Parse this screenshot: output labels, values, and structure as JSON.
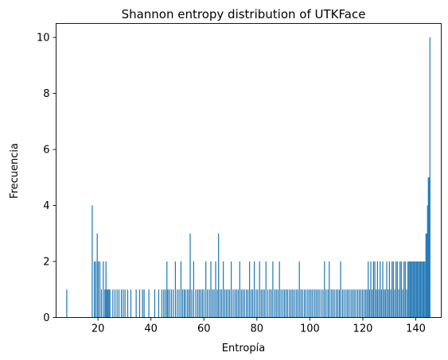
{
  "chart_data": {
    "type": "bar",
    "title": "Shannon entropy distribution of UTKFace",
    "xlabel": "Entropía",
    "ylabel": "Frecuencia",
    "xlim": [
      4.2,
      149.6
    ],
    "ylim": [
      0,
      10.5
    ],
    "xticks": [
      20,
      40,
      60,
      80,
      100,
      120,
      140
    ],
    "yticks": [
      0,
      2,
      4,
      6,
      8,
      10
    ],
    "bar_color": "#1f77b4",
    "bin_width": 0.3,
    "grid": false,
    "legend": "none",
    "bins": [
      [
        8.2,
        1
      ],
      [
        17.8,
        4
      ],
      [
        18.6,
        2
      ],
      [
        19.1,
        2
      ],
      [
        19.7,
        3
      ],
      [
        20.1,
        2
      ],
      [
        20.7,
        2
      ],
      [
        21.3,
        1
      ],
      [
        22.0,
        2
      ],
      [
        22.6,
        1
      ],
      [
        23.0,
        2
      ],
      [
        23.3,
        1
      ],
      [
        23.7,
        1
      ],
      [
        24.1,
        1
      ],
      [
        24.5,
        1
      ],
      [
        25.6,
        1
      ],
      [
        26.4,
        1
      ],
      [
        27.2,
        1
      ],
      [
        27.9,
        1
      ],
      [
        28.8,
        1
      ],
      [
        29.5,
        1
      ],
      [
        30.2,
        1
      ],
      [
        31.2,
        1
      ],
      [
        32.4,
        1
      ],
      [
        34.4,
        1
      ],
      [
        35.7,
        1
      ],
      [
        36.8,
        1
      ],
      [
        37.4,
        1
      ],
      [
        39.2,
        1
      ],
      [
        41.4,
        1
      ],
      [
        42.9,
        1
      ],
      [
        44.1,
        1
      ],
      [
        44.8,
        1
      ],
      [
        45.4,
        1
      ],
      [
        46.0,
        2
      ],
      [
        46.4,
        1
      ],
      [
        47.0,
        1
      ],
      [
        47.7,
        1
      ],
      [
        48.4,
        1
      ],
      [
        49.2,
        2
      ],
      [
        49.9,
        1
      ],
      [
        50.6,
        1
      ],
      [
        51.3,
        2
      ],
      [
        51.9,
        1
      ],
      [
        52.5,
        1
      ],
      [
        53.0,
        1
      ],
      [
        53.7,
        1
      ],
      [
        54.3,
        1
      ],
      [
        54.8,
        3
      ],
      [
        55.4,
        1
      ],
      [
        56.1,
        2
      ],
      [
        56.9,
        1
      ],
      [
        57.6,
        1
      ],
      [
        58.2,
        1
      ],
      [
        58.8,
        1
      ],
      [
        59.4,
        1
      ],
      [
        60.0,
        1
      ],
      [
        60.7,
        2
      ],
      [
        61.3,
        1
      ],
      [
        62.0,
        1
      ],
      [
        62.6,
        2
      ],
      [
        63.2,
        1
      ],
      [
        63.8,
        1
      ],
      [
        64.4,
        2
      ],
      [
        65.0,
        1
      ],
      [
        65.5,
        3
      ],
      [
        66.1,
        1
      ],
      [
        66.7,
        1
      ],
      [
        67.3,
        2
      ],
      [
        67.9,
        1
      ],
      [
        68.5,
        1
      ],
      [
        69.1,
        1
      ],
      [
        69.7,
        1
      ],
      [
        70.3,
        2
      ],
      [
        71.0,
        1
      ],
      [
        71.7,
        1
      ],
      [
        72.3,
        1
      ],
      [
        72.9,
        1
      ],
      [
        73.5,
        2
      ],
      [
        74.1,
        1
      ],
      [
        74.7,
        1
      ],
      [
        75.3,
        1
      ],
      [
        76.0,
        1
      ],
      [
        76.6,
        1
      ],
      [
        77.2,
        2
      ],
      [
        77.8,
        1
      ],
      [
        78.4,
        1
      ],
      [
        79.0,
        2
      ],
      [
        79.7,
        1
      ],
      [
        80.3,
        1
      ],
      [
        81.0,
        2
      ],
      [
        81.6,
        1
      ],
      [
        82.2,
        1
      ],
      [
        82.8,
        1
      ],
      [
        83.4,
        2
      ],
      [
        84.1,
        1
      ],
      [
        84.8,
        1
      ],
      [
        85.4,
        1
      ],
      [
        86.0,
        2
      ],
      [
        86.7,
        1
      ],
      [
        87.3,
        1
      ],
      [
        87.9,
        1
      ],
      [
        88.5,
        2
      ],
      [
        89.1,
        1
      ],
      [
        89.8,
        1
      ],
      [
        90.4,
        1
      ],
      [
        91.0,
        1
      ],
      [
        91.6,
        1
      ],
      [
        92.3,
        1
      ],
      [
        92.9,
        1
      ],
      [
        93.5,
        1
      ],
      [
        94.1,
        1
      ],
      [
        94.8,
        1
      ],
      [
        95.4,
        1
      ],
      [
        96.0,
        2
      ],
      [
        96.6,
        1
      ],
      [
        97.2,
        1
      ],
      [
        97.9,
        1
      ],
      [
        98.5,
        1
      ],
      [
        99.2,
        1
      ],
      [
        99.8,
        1
      ],
      [
        100.4,
        1
      ],
      [
        101.0,
        1
      ],
      [
        101.7,
        1
      ],
      [
        102.3,
        1
      ],
      [
        102.9,
        1
      ],
      [
        103.5,
        1
      ],
      [
        104.2,
        1
      ],
      [
        104.9,
        1
      ],
      [
        105.5,
        2
      ],
      [
        106.1,
        1
      ],
      [
        106.8,
        1
      ],
      [
        107.3,
        2
      ],
      [
        108.0,
        1
      ],
      [
        108.6,
        1
      ],
      [
        109.2,
        1
      ],
      [
        109.9,
        1
      ],
      [
        110.5,
        1
      ],
      [
        111.1,
        1
      ],
      [
        111.6,
        2
      ],
      [
        112.3,
        1
      ],
      [
        112.9,
        1
      ],
      [
        113.6,
        1
      ],
      [
        114.2,
        1
      ],
      [
        114.8,
        1
      ],
      [
        115.5,
        1
      ],
      [
        116.1,
        1
      ],
      [
        116.7,
        1
      ],
      [
        117.3,
        1
      ],
      [
        118.0,
        1
      ],
      [
        118.6,
        1
      ],
      [
        119.2,
        1
      ],
      [
        119.8,
        1
      ],
      [
        120.4,
        1
      ],
      [
        121.0,
        1
      ],
      [
        121.5,
        1
      ],
      [
        122.0,
        2
      ],
      [
        122.5,
        1
      ],
      [
        123.0,
        2
      ],
      [
        123.5,
        1
      ],
      [
        124.0,
        2
      ],
      [
        124.5,
        2
      ],
      [
        125.0,
        1
      ],
      [
        125.5,
        2
      ],
      [
        126.0,
        1
      ],
      [
        126.5,
        2
      ],
      [
        127.0,
        1
      ],
      [
        127.5,
        2
      ],
      [
        128.0,
        1
      ],
      [
        128.5,
        1
      ],
      [
        129.0,
        2
      ],
      [
        129.5,
        1
      ],
      [
        130.0,
        2
      ],
      [
        130.5,
        1
      ],
      [
        131.0,
        2
      ],
      [
        131.5,
        2
      ],
      [
        132.0,
        1
      ],
      [
        132.5,
        2
      ],
      [
        133.0,
        2
      ],
      [
        133.5,
        1
      ],
      [
        134.0,
        2
      ],
      [
        134.5,
        2
      ],
      [
        135.0,
        1
      ],
      [
        135.5,
        2
      ],
      [
        136.0,
        2
      ],
      [
        136.5,
        1
      ],
      [
        137.0,
        2
      ],
      [
        137.4,
        2
      ],
      [
        137.8,
        2
      ],
      [
        138.2,
        2
      ],
      [
        138.6,
        2
      ],
      [
        139.0,
        2
      ],
      [
        139.4,
        2
      ],
      [
        139.8,
        2
      ],
      [
        140.2,
        2
      ],
      [
        140.6,
        2
      ],
      [
        141.0,
        2
      ],
      [
        141.4,
        2
      ],
      [
        141.8,
        2
      ],
      [
        142.2,
        2
      ],
      [
        142.6,
        2
      ],
      [
        143.0,
        2
      ],
      [
        143.4,
        2
      ],
      [
        143.8,
        3
      ],
      [
        144.1,
        3
      ],
      [
        144.4,
        4
      ],
      [
        144.7,
        5
      ],
      [
        145.0,
        5
      ],
      [
        145.3,
        10
      ]
    ]
  }
}
